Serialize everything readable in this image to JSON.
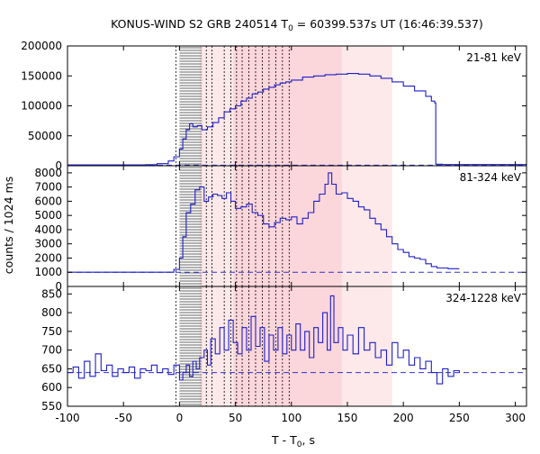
{
  "chart_data": {
    "type": "line",
    "title": {
      "prefix": "KONUS-WIND S2 GRB 240514 T",
      "sub": "0",
      "suffix": " = 60399.537s UT (16:46:39.537)"
    },
    "xlabel": {
      "prefix": "T - T",
      "sub": "0",
      "suffix": ", s"
    },
    "ylabel": "counts / 1024 ms",
    "xlim": [
      -100,
      310
    ],
    "xticks": [
      -100,
      -50,
      0,
      50,
      100,
      150,
      200,
      250,
      300
    ],
    "colors": {
      "curve": "#1f1fc8",
      "background": "#3232c8",
      "band_light": "#fde9ea",
      "band_dark": "#fbd6db",
      "marker_line": "#000000"
    },
    "shaded_bands": [
      {
        "x0": 18,
        "x1": 190,
        "shade": "light"
      },
      {
        "x0": 48,
        "x1": 145,
        "shade": "dark"
      }
    ],
    "vertical_markers": [
      -3,
      24,
      29,
      40,
      46,
      51,
      56,
      62,
      68,
      74,
      80,
      86,
      92,
      98
    ],
    "hatched_region": [
      0,
      20
    ],
    "panels": [
      {
        "label": "21-81 keV",
        "ylim": [
          0,
          200000
        ],
        "yticks": [
          0,
          50000,
          100000,
          150000,
          200000
        ],
        "background_level": 1000,
        "points": [
          [
            -100,
            1500
          ],
          [
            -60,
            1500
          ],
          [
            -30,
            1800
          ],
          [
            -20,
            3500
          ],
          [
            -10,
            8000
          ],
          [
            -5,
            15000
          ],
          [
            0,
            28000
          ],
          [
            3,
            45000
          ],
          [
            6,
            60000
          ],
          [
            9,
            70000
          ],
          [
            12,
            65000
          ],
          [
            16,
            67000
          ],
          [
            20,
            60000
          ],
          [
            25,
            65000
          ],
          [
            30,
            72000
          ],
          [
            35,
            80000
          ],
          [
            40,
            90000
          ],
          [
            45,
            95000
          ],
          [
            50,
            100000
          ],
          [
            55,
            108000
          ],
          [
            60,
            113000
          ],
          [
            65,
            120000
          ],
          [
            70,
            123000
          ],
          [
            75,
            128000
          ],
          [
            80,
            131000
          ],
          [
            85,
            135000
          ],
          [
            90,
            138000
          ],
          [
            95,
            140000
          ],
          [
            100,
            143000
          ],
          [
            110,
            148000
          ],
          [
            120,
            150000
          ],
          [
            130,
            152000
          ],
          [
            140,
            153000
          ],
          [
            150,
            154000
          ],
          [
            160,
            153000
          ],
          [
            170,
            150000
          ],
          [
            180,
            146000
          ],
          [
            190,
            140000
          ],
          [
            200,
            133000
          ],
          [
            210,
            125000
          ],
          [
            220,
            116000
          ],
          [
            225,
            108000
          ],
          [
            228,
            105000
          ],
          [
            229,
            2500
          ],
          [
            235,
            2000
          ],
          [
            310,
            1800
          ]
        ]
      },
      {
        "label": "81-324 keV",
        "ylim": [
          0,
          8500
        ],
        "yticks": [
          0,
          1000,
          2000,
          3000,
          4000,
          5000,
          6000,
          7000,
          8000
        ],
        "background_level": 1000,
        "points": [
          [
            -100,
            1000
          ],
          [
            -20,
            1000
          ],
          [
            -5,
            1200
          ],
          [
            0,
            2000
          ],
          [
            3,
            3500
          ],
          [
            6,
            5200
          ],
          [
            10,
            5800
          ],
          [
            14,
            6800
          ],
          [
            18,
            7000
          ],
          [
            22,
            6000
          ],
          [
            26,
            6300
          ],
          [
            30,
            6500
          ],
          [
            34,
            6400
          ],
          [
            38,
            6200
          ],
          [
            42,
            6600
          ],
          [
            46,
            6000
          ],
          [
            50,
            5500
          ],
          [
            55,
            5600
          ],
          [
            60,
            5800
          ],
          [
            65,
            5200
          ],
          [
            70,
            5000
          ],
          [
            75,
            4400
          ],
          [
            80,
            4200
          ],
          [
            85,
            4500
          ],
          [
            90,
            4800
          ],
          [
            95,
            4700
          ],
          [
            100,
            4900
          ],
          [
            105,
            4400
          ],
          [
            110,
            4800
          ],
          [
            115,
            5200
          ],
          [
            120,
            6000
          ],
          [
            125,
            6500
          ],
          [
            130,
            7200
          ],
          [
            133,
            8000
          ],
          [
            136,
            7200
          ],
          [
            140,
            6500
          ],
          [
            145,
            6600
          ],
          [
            150,
            6200
          ],
          [
            155,
            6000
          ],
          [
            160,
            5600
          ],
          [
            165,
            5400
          ],
          [
            170,
            4800
          ],
          [
            175,
            4400
          ],
          [
            180,
            4000
          ],
          [
            185,
            3500
          ],
          [
            190,
            3000
          ],
          [
            195,
            2600
          ],
          [
            200,
            2400
          ],
          [
            205,
            2100
          ],
          [
            210,
            2000
          ],
          [
            215,
            1900
          ],
          [
            220,
            1600
          ],
          [
            225,
            1400
          ],
          [
            230,
            1300
          ],
          [
            240,
            1250
          ],
          [
            250,
            1250
          ]
        ]
      },
      {
        "label": "324-1228 keV",
        "ylim": [
          550,
          870
        ],
        "yticks": [
          550,
          600,
          650,
          700,
          750,
          800,
          850
        ],
        "background_level": 640,
        "points": [
          [
            -100,
            640
          ],
          [
            -95,
            655
          ],
          [
            -90,
            625
          ],
          [
            -85,
            670
          ],
          [
            -80,
            630
          ],
          [
            -75,
            690
          ],
          [
            -70,
            645
          ],
          [
            -65,
            660
          ],
          [
            -60,
            630
          ],
          [
            -55,
            650
          ],
          [
            -50,
            640
          ],
          [
            -45,
            655
          ],
          [
            -40,
            625
          ],
          [
            -35,
            650
          ],
          [
            -30,
            645
          ],
          [
            -25,
            660
          ],
          [
            -20,
            640
          ],
          [
            -15,
            650
          ],
          [
            -10,
            635
          ],
          [
            -5,
            660
          ],
          [
            0,
            620
          ],
          [
            3,
            640
          ],
          [
            6,
            660
          ],
          [
            9,
            630
          ],
          [
            12,
            670
          ],
          [
            15,
            650
          ],
          [
            18,
            680
          ],
          [
            22,
            700
          ],
          [
            25,
            660
          ],
          [
            28,
            730
          ],
          [
            32,
            690
          ],
          [
            36,
            760
          ],
          [
            40,
            700
          ],
          [
            44,
            780
          ],
          [
            48,
            720
          ],
          [
            52,
            690
          ],
          [
            56,
            760
          ],
          [
            60,
            700
          ],
          [
            64,
            790
          ],
          [
            68,
            710
          ],
          [
            72,
            760
          ],
          [
            76,
            670
          ],
          [
            80,
            740
          ],
          [
            84,
            700
          ],
          [
            88,
            760
          ],
          [
            92,
            690
          ],
          [
            96,
            740
          ],
          [
            100,
            700
          ],
          [
            104,
            770
          ],
          [
            108,
            700
          ],
          [
            112,
            750
          ],
          [
            116,
            680
          ],
          [
            120,
            760
          ],
          [
            124,
            720
          ],
          [
            128,
            800
          ],
          [
            132,
            700
          ],
          [
            135,
            845
          ],
          [
            138,
            720
          ],
          [
            142,
            760
          ],
          [
            146,
            700
          ],
          [
            150,
            740
          ],
          [
            155,
            690
          ],
          [
            160,
            760
          ],
          [
            165,
            700
          ],
          [
            170,
            720
          ],
          [
            175,
            680
          ],
          [
            180,
            700
          ],
          [
            185,
            660
          ],
          [
            190,
            720
          ],
          [
            195,
            680
          ],
          [
            200,
            700
          ],
          [
            205,
            660
          ],
          [
            210,
            680
          ],
          [
            215,
            650
          ],
          [
            220,
            670
          ],
          [
            225,
            640
          ],
          [
            230,
            610
          ],
          [
            235,
            650
          ],
          [
            240,
            630
          ],
          [
            245,
            645
          ],
          [
            250,
            640
          ]
        ]
      }
    ]
  }
}
